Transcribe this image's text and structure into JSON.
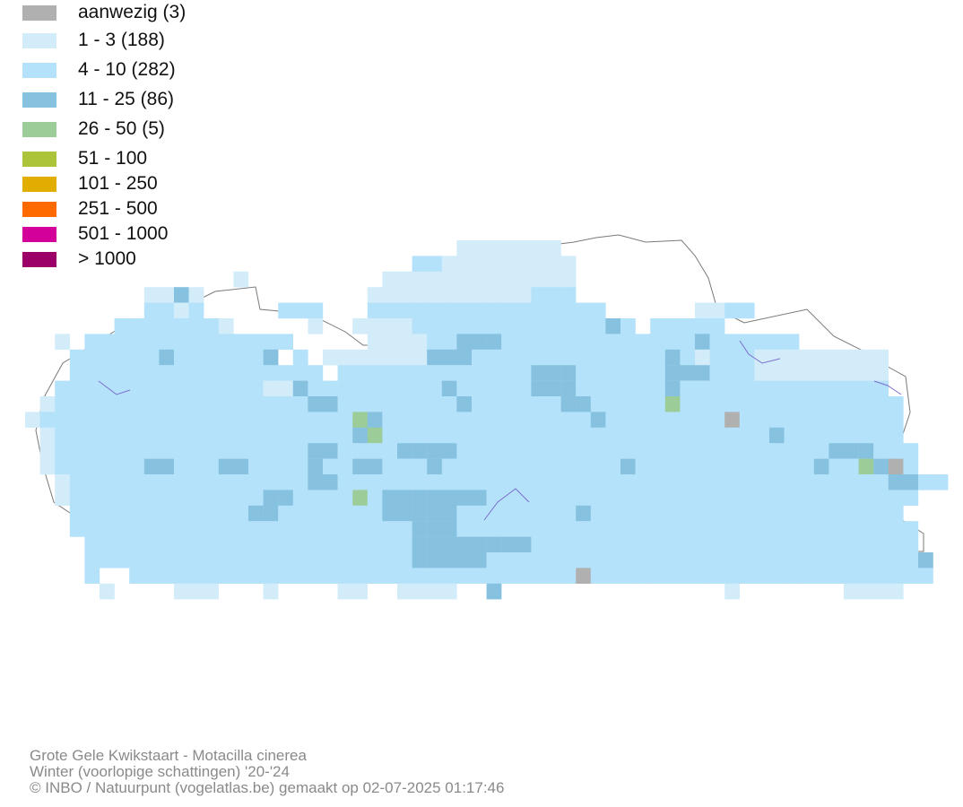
{
  "legend": {
    "items": [
      {
        "label": "aanwezig (3)",
        "color": "#b0b0b0"
      },
      {
        "label": "1 - 3 (188)",
        "color": "#d2ecfa"
      },
      {
        "label": "4 - 10 (282)",
        "color": "#b3e2fa"
      },
      {
        "label": "11 - 25 (86)",
        "color": "#86c2e0"
      },
      {
        "label": "26 - 50 (5)",
        "color": "#9ccc98"
      },
      {
        "label": "51 - 100",
        "color": "#acc43a"
      },
      {
        "label": "101 - 250",
        "color": "#e0ad00"
      },
      {
        "label": "251 - 500",
        "color": "#ff6a00"
      },
      {
        "label": "501 - 1000",
        "color": "#d4009a"
      },
      {
        "label": "> 1000",
        "color": "#9c0068"
      }
    ]
  },
  "map": {
    "border_color": "#7a7a7a",
    "river_color": "#7d6fd0"
  },
  "footer": {
    "species": "Grote Gele Kwikstaart - Motacilla cinerea",
    "season": "Winter (voorlopige schattingen) '20-'24",
    "credit": "© INBO / Natuurpunt (vogelatlas.be) gemaakt op 02-07-2025 01:17:46"
  }
}
